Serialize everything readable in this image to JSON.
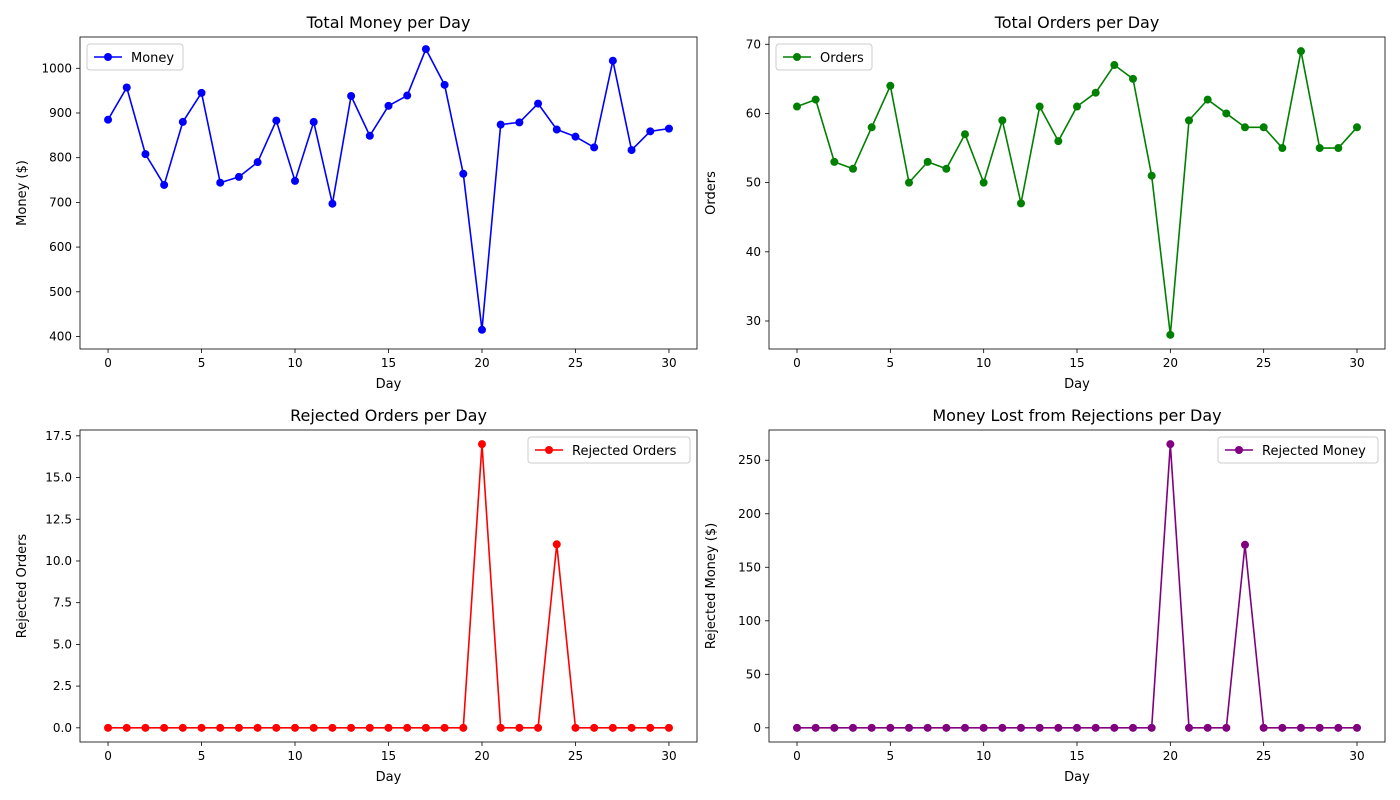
{
  "chart_data": [
    {
      "type": "line",
      "title": "Total Money per Day",
      "xlabel": "Day",
      "ylabel": "Money ($)",
      "xlim": [
        -1.5,
        31.5
      ],
      "ylim": [
        372,
        1070
      ],
      "xticks": [
        0,
        5,
        10,
        15,
        20,
        25,
        30
      ],
      "xtick_labels": [
        "0",
        "5",
        "10",
        "15",
        "20",
        "25",
        "30"
      ],
      "yticks": [
        400,
        500,
        600,
        700,
        800,
        900,
        1000
      ],
      "ytick_labels": [
        "400",
        "500",
        "600",
        "700",
        "800",
        "900",
        "1000"
      ],
      "legend_position": "top-left",
      "grid": false,
      "series": [
        {
          "name": "Money",
          "color": "#0000ff",
          "x": [
            0,
            1,
            2,
            3,
            4,
            5,
            6,
            7,
            8,
            9,
            10,
            11,
            12,
            13,
            14,
            15,
            16,
            17,
            18,
            19,
            20,
            21,
            22,
            23,
            24,
            25,
            26,
            27,
            28,
            29,
            30
          ],
          "values": [
            885,
            957,
            808,
            739,
            880,
            945,
            744,
            757,
            790,
            883,
            748,
            880,
            697,
            938,
            849,
            916,
            939,
            1043,
            963,
            764,
            415,
            874,
            879,
            921,
            863,
            847,
            823,
            1017,
            817,
            859,
            865
          ]
        }
      ]
    },
    {
      "type": "line",
      "title": "Total Orders per Day",
      "xlabel": "Day",
      "ylabel": "Orders",
      "xlim": [
        -1.5,
        31.5
      ],
      "ylim": [
        25.95,
        71.05
      ],
      "xticks": [
        0,
        5,
        10,
        15,
        20,
        25,
        30
      ],
      "xtick_labels": [
        "0",
        "5",
        "10",
        "15",
        "20",
        "25",
        "30"
      ],
      "yticks": [
        30,
        40,
        50,
        60,
        70
      ],
      "ytick_labels": [
        "30",
        "40",
        "50",
        "60",
        "70"
      ],
      "legend_position": "top-left",
      "grid": false,
      "series": [
        {
          "name": "Orders",
          "color": "#008000",
          "x": [
            0,
            1,
            2,
            3,
            4,
            5,
            6,
            7,
            8,
            9,
            10,
            11,
            12,
            13,
            14,
            15,
            16,
            17,
            18,
            19,
            20,
            21,
            22,
            23,
            24,
            25,
            26,
            27,
            28,
            29,
            30
          ],
          "values": [
            61,
            62,
            53,
            52,
            58,
            64,
            50,
            53,
            52,
            57,
            50,
            59,
            47,
            61,
            56,
            61,
            63,
            67,
            65,
            51,
            28,
            59,
            62,
            60,
            58,
            58,
            55,
            69,
            55,
            55,
            58
          ]
        }
      ]
    },
    {
      "type": "line",
      "title": "Rejected Orders per Day",
      "xlabel": "Day",
      "ylabel": "Rejected Orders",
      "xlim": [
        -1.5,
        31.5
      ],
      "ylim": [
        -0.85,
        17.85
      ],
      "xticks": [
        0,
        5,
        10,
        15,
        20,
        25,
        30
      ],
      "xtick_labels": [
        "0",
        "5",
        "10",
        "15",
        "20",
        "25",
        "30"
      ],
      "yticks": [
        0,
        2.5,
        5,
        7.5,
        10,
        12.5,
        15,
        17.5
      ],
      "ytick_labels": [
        "0.0",
        "2.5",
        "5.0",
        "7.5",
        "10.0",
        "12.5",
        "15.0",
        "17.5"
      ],
      "legend_position": "top-right",
      "grid": false,
      "series": [
        {
          "name": "Rejected Orders",
          "color": "#ff0000",
          "x": [
            0,
            1,
            2,
            3,
            4,
            5,
            6,
            7,
            8,
            9,
            10,
            11,
            12,
            13,
            14,
            15,
            16,
            17,
            18,
            19,
            20,
            21,
            22,
            23,
            24,
            25,
            26,
            27,
            28,
            29,
            30
          ],
          "values": [
            0,
            0,
            0,
            0,
            0,
            0,
            0,
            0,
            0,
            0,
            0,
            0,
            0,
            0,
            0,
            0,
            0,
            0,
            0,
            0,
            17,
            0,
            0,
            0,
            11,
            0,
            0,
            0,
            0,
            0,
            0
          ]
        }
      ]
    },
    {
      "type": "line",
      "title": "Money Lost from Rejections per Day",
      "xlabel": "Day",
      "ylabel": "Rejected Money ($)",
      "xlim": [
        -1.5,
        31.5
      ],
      "ylim": [
        -13.25,
        278.25
      ],
      "xticks": [
        0,
        5,
        10,
        15,
        20,
        25,
        30
      ],
      "xtick_labels": [
        "0",
        "5",
        "10",
        "15",
        "20",
        "25",
        "30"
      ],
      "yticks": [
        0,
        50,
        100,
        150,
        200,
        250
      ],
      "ytick_labels": [
        "0",
        "50",
        "100",
        "150",
        "200",
        "250"
      ],
      "legend_position": "top-right",
      "grid": false,
      "series": [
        {
          "name": "Rejected Money",
          "color": "#800080",
          "x": [
            0,
            1,
            2,
            3,
            4,
            5,
            6,
            7,
            8,
            9,
            10,
            11,
            12,
            13,
            14,
            15,
            16,
            17,
            18,
            19,
            20,
            21,
            22,
            23,
            24,
            25,
            26,
            27,
            28,
            29,
            30
          ],
          "values": [
            0,
            0,
            0,
            0,
            0,
            0,
            0,
            0,
            0,
            0,
            0,
            0,
            0,
            0,
            0,
            0,
            0,
            0,
            0,
            0,
            265,
            0,
            0,
            0,
            171,
            0,
            0,
            0,
            0,
            0,
            0
          ]
        }
      ]
    }
  ]
}
